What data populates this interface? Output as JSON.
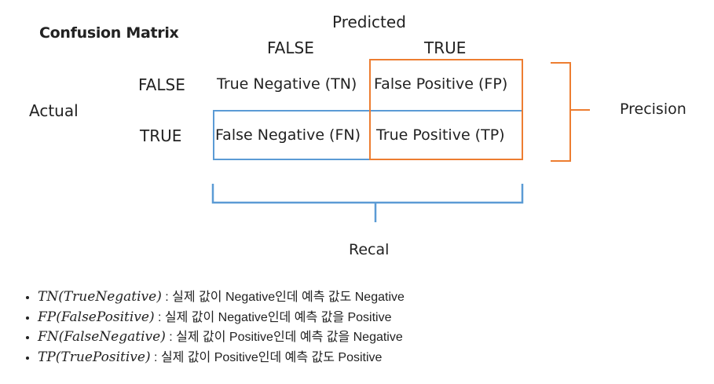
{
  "figure": {
    "title": "Confusion Matrix",
    "axis_predicted": "Predicted",
    "axis_actual": "Actual",
    "col_labels": [
      "FALSE",
      "TRUE"
    ],
    "row_labels": [
      "FALSE",
      "TRUE"
    ],
    "cells": {
      "tn": "True Negative (TN)",
      "fp": "False Positive (FP)",
      "fn": "False Negative (FN)",
      "tp": "True Positive (TP)"
    },
    "precision_label": "Precision",
    "recall_label": "Recal",
    "colors": {
      "precision": "#ed7d31",
      "recall": "#5b9bd5"
    }
  },
  "definitions": [
    {
      "term": "TN(TrueNegative)",
      "text": " : 실제 값이 Negative인데 예측 값도 Negative"
    },
    {
      "term": "FP(FalsePositive)",
      "text": " : 실제 값이 Negative인데 예측 값을 Positive"
    },
    {
      "term": "FN(FalseNegative)",
      "text": " : 실제 값이 Positive인데 예측 값을 Negative"
    },
    {
      "term": "TP(TruePositive)",
      "text": " : 실제 값이 Positive인데 예측 값도 Positive"
    }
  ]
}
